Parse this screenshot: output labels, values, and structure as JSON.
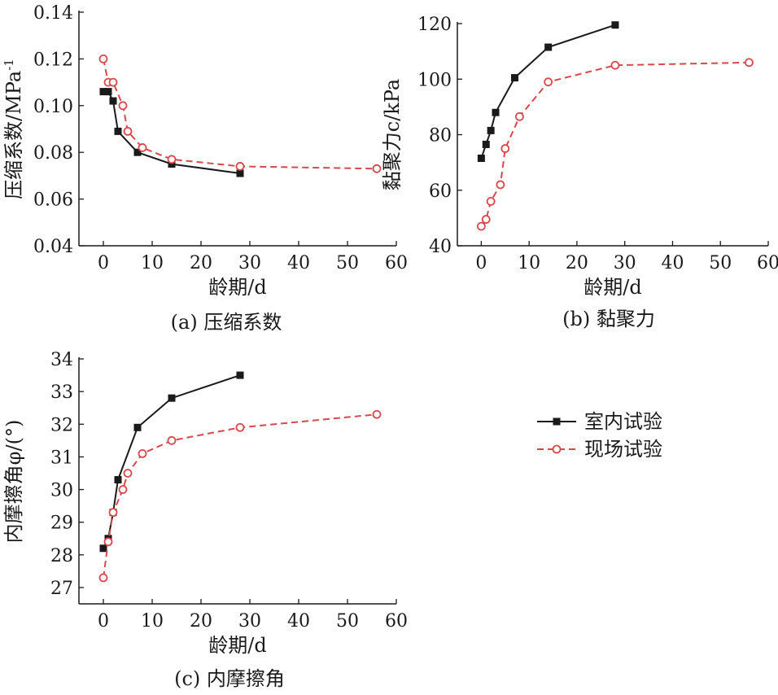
{
  "colors": {
    "lab": "#1a1a1a",
    "field": "#d9474b"
  },
  "legend": {
    "lab_label": "室内试验",
    "field_label": "现场试验"
  },
  "chart_data": [
    {
      "type": "line",
      "caption": "(a) 压缩系数",
      "xlabel": "龄期/d",
      "ylabel": "压缩系数/MPa",
      "ylabel_sup": "-1",
      "xlim": [
        -5,
        60
      ],
      "ylim": [
        0.04,
        0.14
      ],
      "xticks": [
        0,
        10,
        20,
        30,
        40,
        50,
        60
      ],
      "yticks": [
        0.04,
        0.06,
        0.08,
        0.1,
        0.12,
        0.14
      ],
      "ytick_labels": [
        "0.04",
        "0.06",
        "0.08",
        "0.10",
        "0.12",
        "0.14"
      ],
      "series": [
        {
          "name": "室内试验",
          "marker": "square",
          "line": "solid",
          "x": [
            0,
            1,
            2,
            3,
            7,
            14,
            28
          ],
          "y": [
            0.106,
            0.106,
            0.102,
            0.089,
            0.08,
            0.075,
            0.071
          ]
        },
        {
          "name": "现场试验",
          "marker": "circle",
          "line": "dashed",
          "x": [
            0,
            1,
            2,
            4,
            5,
            8,
            14,
            28,
            56
          ],
          "y": [
            0.12,
            0.11,
            0.11,
            0.1,
            0.089,
            0.082,
            0.077,
            0.074,
            0.073
          ]
        }
      ]
    },
    {
      "type": "line",
      "caption": "(b) 黏聚力",
      "xlabel": "龄期/d",
      "ylabel": "黏聚力c/kPa",
      "xlim": [
        -5,
        60
      ],
      "ylim": [
        40,
        120
      ],
      "xticks": [
        0,
        10,
        20,
        30,
        40,
        50,
        60
      ],
      "yticks": [
        40,
        60,
        80,
        100,
        120
      ],
      "ytick_labels": [
        "40",
        "60",
        "80",
        "100",
        "120"
      ],
      "series": [
        {
          "name": "室内试验",
          "marker": "square",
          "line": "solid",
          "x": [
            0,
            1,
            2,
            3,
            7,
            14,
            28
          ],
          "y": [
            71.5,
            76.5,
            81.5,
            88,
            100.5,
            111.5,
            119.5
          ]
        },
        {
          "name": "现场试验",
          "marker": "circle",
          "line": "dashed",
          "x": [
            0,
            1,
            2,
            4,
            5,
            8,
            14,
            28,
            56
          ],
          "y": [
            47,
            49.5,
            56,
            62,
            75,
            86.5,
            99,
            105,
            106
          ]
        }
      ]
    },
    {
      "type": "line",
      "caption": "(c) 内摩擦角",
      "xlabel": "龄期/d",
      "ylabel": "内摩擦角φ/(°)",
      "xlim": [
        -5,
        60
      ],
      "ylim": [
        26.5,
        34
      ],
      "xticks": [
        0,
        10,
        20,
        30,
        40,
        50,
        60
      ],
      "yticks": [
        27,
        28,
        29,
        30,
        31,
        32,
        33,
        34
      ],
      "ytick_labels": [
        "27",
        "28",
        "29",
        "30",
        "31",
        "32",
        "33",
        "34"
      ],
      "series": [
        {
          "name": "室内试验",
          "marker": "square",
          "line": "solid",
          "x": [
            0,
            1,
            2,
            3,
            7,
            14,
            28
          ],
          "y": [
            28.2,
            28.5,
            29.3,
            30.3,
            31.9,
            32.8,
            33.5
          ]
        },
        {
          "name": "现场试验",
          "marker": "circle",
          "line": "dashed",
          "x": [
            0,
            1,
            2,
            4,
            5,
            8,
            14,
            28,
            56
          ],
          "y": [
            27.3,
            28.4,
            29.3,
            30.0,
            30.5,
            31.1,
            31.5,
            31.9,
            32.3
          ]
        }
      ]
    }
  ]
}
